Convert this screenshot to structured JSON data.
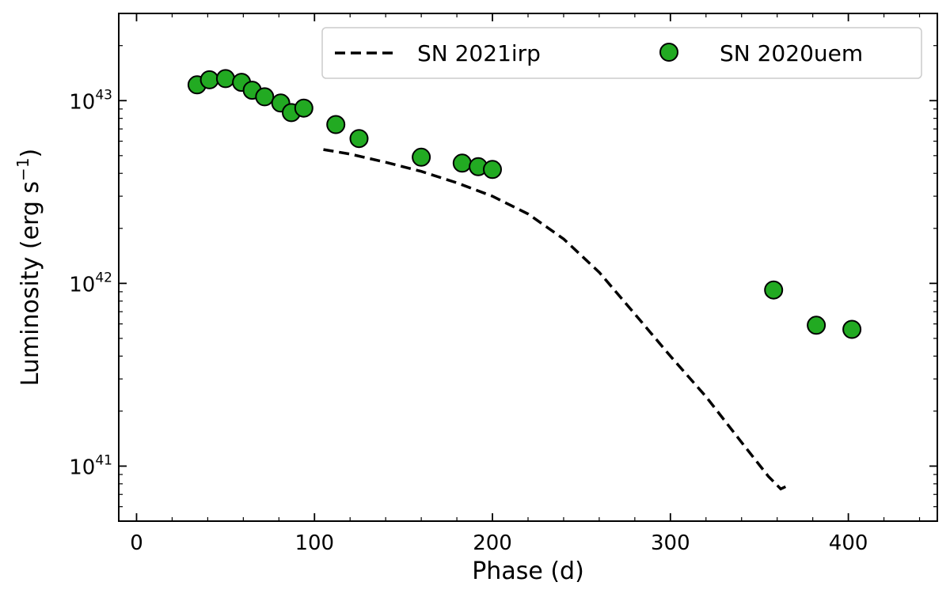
{
  "chart_data": {
    "type": "scatter",
    "xlabel": "Phase (d)",
    "ylabel": "Luminosity (erg s",
    "ylabel_sup": "−1",
    "ylabel_close": ")",
    "xlim": [
      -10,
      450
    ],
    "ylim": [
      5e+40,
      3e+43
    ],
    "yscale": "log",
    "x_ticks": [
      0,
      100,
      200,
      300,
      400
    ],
    "y_ticks": [
      {
        "value": 1e+41,
        "base": "10",
        "exp": "41"
      },
      {
        "value": 1e+42,
        "base": "10",
        "exp": "42"
      },
      {
        "value": 1e+43,
        "base": "10",
        "exp": "43"
      }
    ],
    "legend_position": "top-right",
    "series": [
      {
        "name": "SN 2021irp",
        "style": "dashed-line",
        "color": "#000000",
        "x": [
          105,
          120,
          140,
          160,
          180,
          200,
          220,
          240,
          260,
          280,
          300,
          320,
          340,
          355,
          362,
          367
        ],
        "y": [
          5.4e+42,
          5.1e+42,
          4.6e+42,
          4.1e+42,
          3.55e+42,
          3e+42,
          2.4e+42,
          1.75e+42,
          1.15e+42,
          6.8e+41,
          4e+41,
          2.4e+41,
          1.35e+41,
          8.8e+40,
          7.5e+40,
          7.9e+40
        ]
      },
      {
        "name": "SN 2020uem",
        "style": "markers",
        "color": "#22aa22",
        "x": [
          34,
          41,
          50,
          59,
          65,
          72,
          81,
          87,
          94,
          112,
          125,
          160,
          183,
          192,
          200,
          358,
          382,
          402
        ],
        "y": [
          1.22e+43,
          1.3e+43,
          1.32e+43,
          1.26e+43,
          1.14e+43,
          1.05e+43,
          9.7e+42,
          8.6e+42,
          9.1e+42,
          7.4e+42,
          6.2e+42,
          4.9e+42,
          4.55e+42,
          4.35e+42,
          4.2e+42,
          9.2e+41,
          5.9e+41,
          5.6e+41
        ]
      }
    ]
  }
}
